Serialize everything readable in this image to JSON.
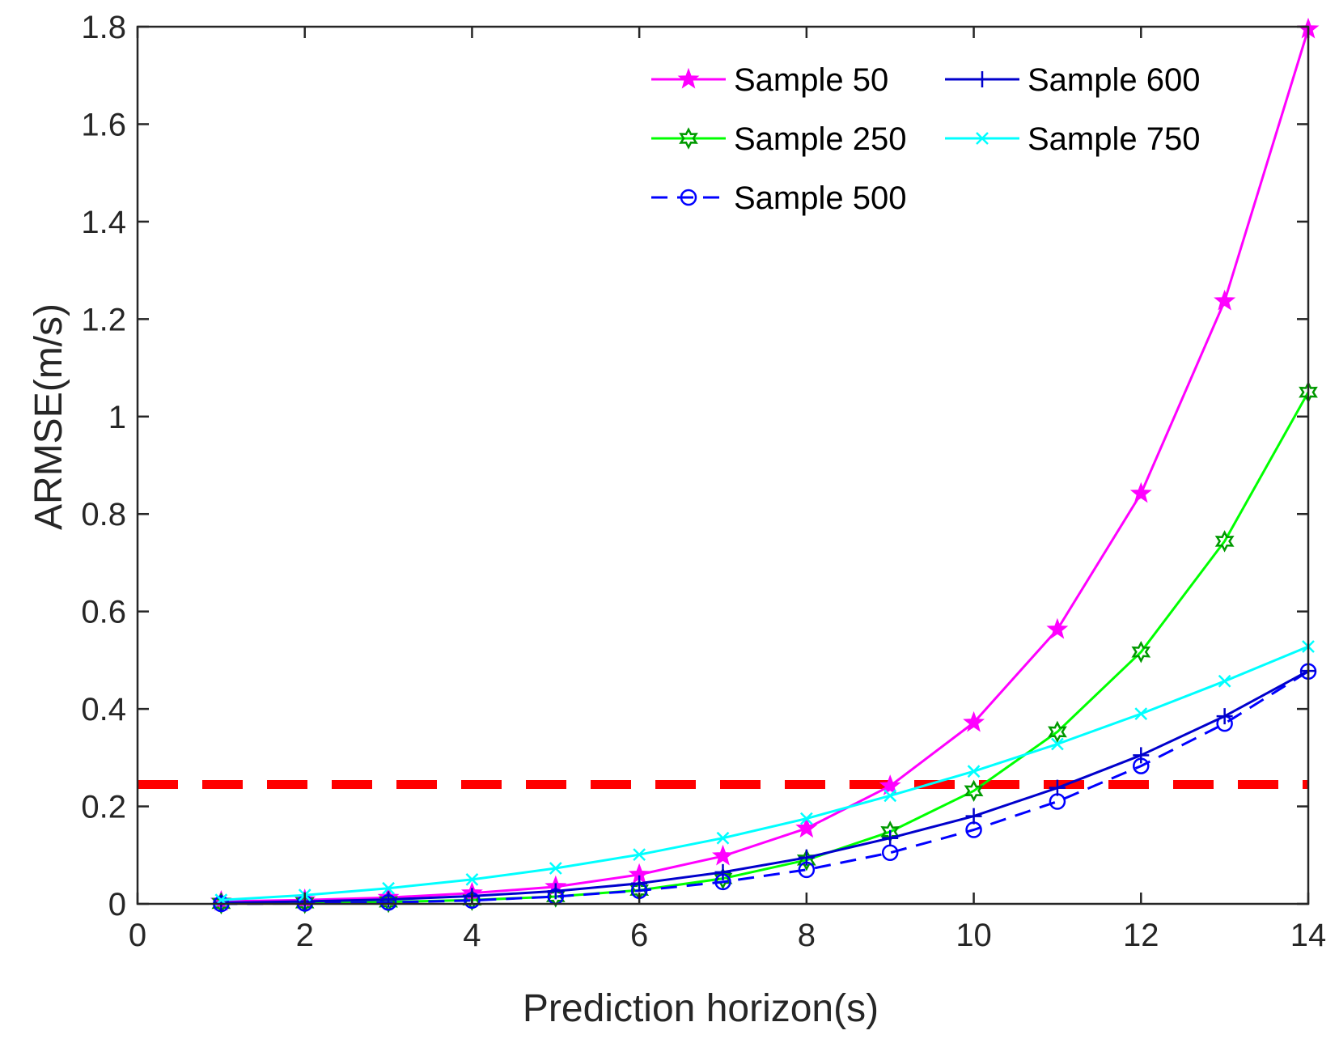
{
  "chart_data": {
    "type": "line",
    "title": "",
    "xlabel": "Prediction horizon(s)",
    "ylabel": "ARMSE(m/s)",
    "xlim": [
      0,
      14
    ],
    "ylim": [
      0,
      1.8
    ],
    "xticks": [
      0,
      2,
      4,
      6,
      8,
      10,
      12,
      14
    ],
    "yticks": [
      0,
      0.2,
      0.4,
      0.6,
      0.8,
      1,
      1.2,
      1.4,
      1.6,
      1.8
    ],
    "xtick_labels": [
      "0",
      "2",
      "4",
      "6",
      "8",
      "10",
      "12",
      "14"
    ],
    "ytick_labels": [
      "0",
      "0.2",
      "0.4",
      "0.6",
      "0.8",
      "1",
      "1.2",
      "1.4",
      "1.6",
      "1.8"
    ],
    "grid": false,
    "legend_position": "top-right",
    "x": [
      1,
      2,
      3,
      4,
      5,
      6,
      7,
      8,
      9,
      10,
      11,
      12,
      13,
      14
    ],
    "series": [
      {
        "name": "Sample 50",
        "color": "#ff00ff",
        "marker": "star",
        "dash": "solid",
        "values": [
          0.005,
          0.008,
          0.013,
          0.022,
          0.035,
          0.06,
          0.098,
          0.155,
          0.242,
          0.372,
          0.563,
          0.842,
          1.237,
          1.795
        ]
      },
      {
        "name": "Sample 250",
        "color": "#00ff00",
        "marker": "hexagram",
        "dash": "solid",
        "values": [
          0.001,
          0.002,
          0.004,
          0.008,
          0.015,
          0.028,
          0.052,
          0.09,
          0.148,
          0.232,
          0.353,
          0.517,
          0.744,
          1.05
        ]
      },
      {
        "name": "Sample 500",
        "color": "#0000ff",
        "marker": "circle",
        "dash": "dashed",
        "values": [
          0.0,
          0.001,
          0.003,
          0.007,
          0.015,
          0.027,
          0.045,
          0.07,
          0.105,
          0.152,
          0.21,
          0.283,
          0.37,
          0.477
        ]
      },
      {
        "name": "Sample 600",
        "color": "#0000cc",
        "marker": "plus",
        "dash": "solid",
        "values": [
          0.002,
          0.005,
          0.009,
          0.016,
          0.026,
          0.042,
          0.065,
          0.095,
          0.135,
          0.18,
          0.238,
          0.305,
          0.385,
          0.478
        ]
      },
      {
        "name": "Sample 750",
        "color": "#00ffff",
        "marker": "x",
        "dash": "solid",
        "values": [
          0.008,
          0.018,
          0.032,
          0.05,
          0.073,
          0.101,
          0.135,
          0.175,
          0.222,
          0.272,
          0.328,
          0.39,
          0.457,
          0.528
        ]
      }
    ],
    "reference_line": {
      "y": 0.245,
      "color": "#ff0000",
      "dash": "dashed"
    }
  }
}
